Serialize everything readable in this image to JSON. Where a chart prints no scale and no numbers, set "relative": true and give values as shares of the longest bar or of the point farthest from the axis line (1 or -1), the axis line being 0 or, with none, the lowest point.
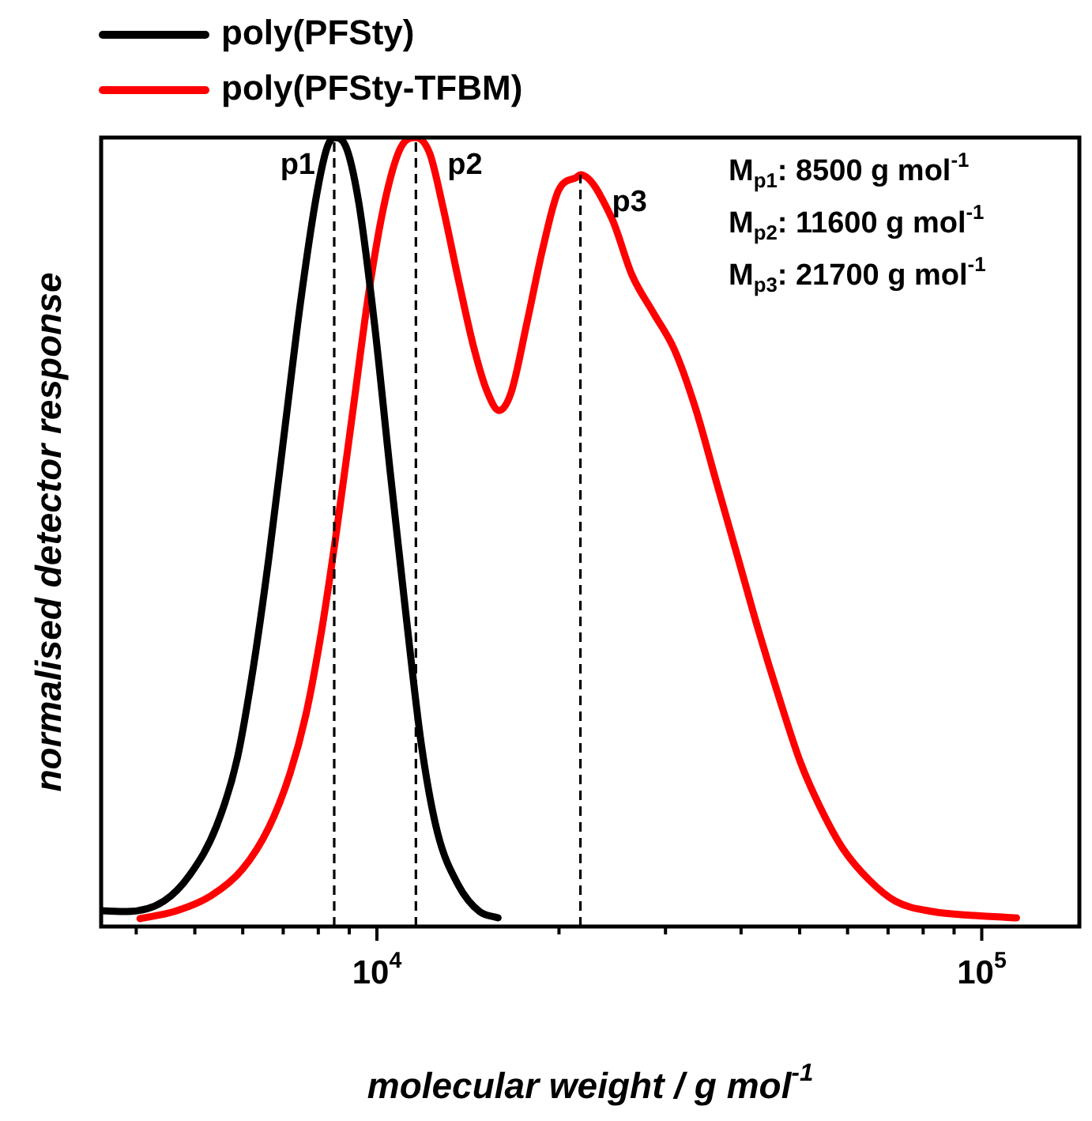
{
  "chart_data": {
    "type": "line",
    "xlabel": "molecular weight / g mol$^{-1}$",
    "ylabel": "normalised detector response",
    "relative": true,
    "log": "x",
    "tick_labels": "x",
    "legend": "top left",
    "marker": "none",
    "line_style": "solid",
    "xlim": [
      3500,
      145000
    ],
    "xticks": [
      {
        "value": 4000,
        "label": null
      },
      {
        "value": 5000,
        "label": null
      },
      {
        "value": 6000,
        "label": null
      },
      {
        "value": 7000,
        "label": null
      },
      {
        "value": 8000,
        "label": null
      },
      {
        "value": 9000,
        "label": null
      },
      {
        "value": 10000,
        "label": "10$^{4}$"
      },
      {
        "value": 20000,
        "label": null
      },
      {
        "value": 30000,
        "label": null
      },
      {
        "value": 40000,
        "label": null
      },
      {
        "value": 50000,
        "label": null
      },
      {
        "value": 60000,
        "label": null
      },
      {
        "value": 70000,
        "label": null
      },
      {
        "value": 80000,
        "label": null
      },
      {
        "value": 90000,
        "label": null
      },
      {
        "value": 100000,
        "label": "10$^{5}$"
      }
    ],
    "series": [
      {
        "name": "poly(PFSty)",
        "color": "#000000",
        "x": [
          3508,
          3861,
          4441,
          4911,
          5429,
          5880,
          6246,
          6632,
          7043,
          7479,
          7943,
          8269,
          8500,
          8867,
          9326,
          9904,
          10517,
          11170,
          11862,
          12596,
          13646,
          14779,
          15860
        ],
        "values": [
          0.02,
          0.019,
          0.032,
          0.066,
          0.127,
          0.214,
          0.328,
          0.469,
          0.631,
          0.792,
          0.926,
          0.987,
          1.0,
          0.99,
          0.919,
          0.765,
          0.577,
          0.395,
          0.227,
          0.119,
          0.052,
          0.019,
          0.011
        ]
      },
      {
        "name": "poly(PFSty-TFBM)",
        "color": "#ff0000",
        "x": [
          4058,
          4624,
          5319,
          5999,
          6632,
          7184,
          7629,
          8102,
          8604,
          9138,
          9703,
          10306,
          10944,
          11600,
          12225,
          12848,
          13646,
          14492,
          15233,
          15926,
          16673,
          17701,
          18798,
          19966,
          21418,
          21700,
          24406,
          26436,
          28637,
          31041,
          33627,
          36425,
          39474,
          42756,
          46324,
          50211,
          54388,
          58913,
          65147,
          72027,
          82832,
          97275,
          114150
        ],
        "values": [
          0.01,
          0.019,
          0.039,
          0.073,
          0.126,
          0.194,
          0.268,
          0.375,
          0.509,
          0.657,
          0.805,
          0.919,
          0.987,
          1.0,
          0.98,
          0.913,
          0.819,
          0.731,
          0.677,
          0.654,
          0.677,
          0.765,
          0.859,
          0.933,
          0.95,
          0.953,
          0.899,
          0.825,
          0.778,
          0.731,
          0.657,
          0.563,
          0.469,
          0.375,
          0.288,
          0.207,
          0.147,
          0.099,
          0.059,
          0.032,
          0.019,
          0.014,
          0.011
        ]
      }
    ],
    "ref_lines": [
      {
        "axis": "x",
        "value": 8500,
        "label": "p1",
        "line_style": "dashed"
      },
      {
        "axis": "x",
        "value": 11600,
        "label": "p2",
        "line_style": "dashed"
      },
      {
        "axis": "x",
        "value": 21700,
        "label": "p3",
        "line_style": "dashed"
      }
    ],
    "annotations": [
      "M$_{p1}$: 8500 g mol$^{-1}$",
      "M$_{p2}$: 11600 g mol$^{-1}$",
      "M$_{p3}$: 21700 g mol$^{-1}$"
    ]
  }
}
